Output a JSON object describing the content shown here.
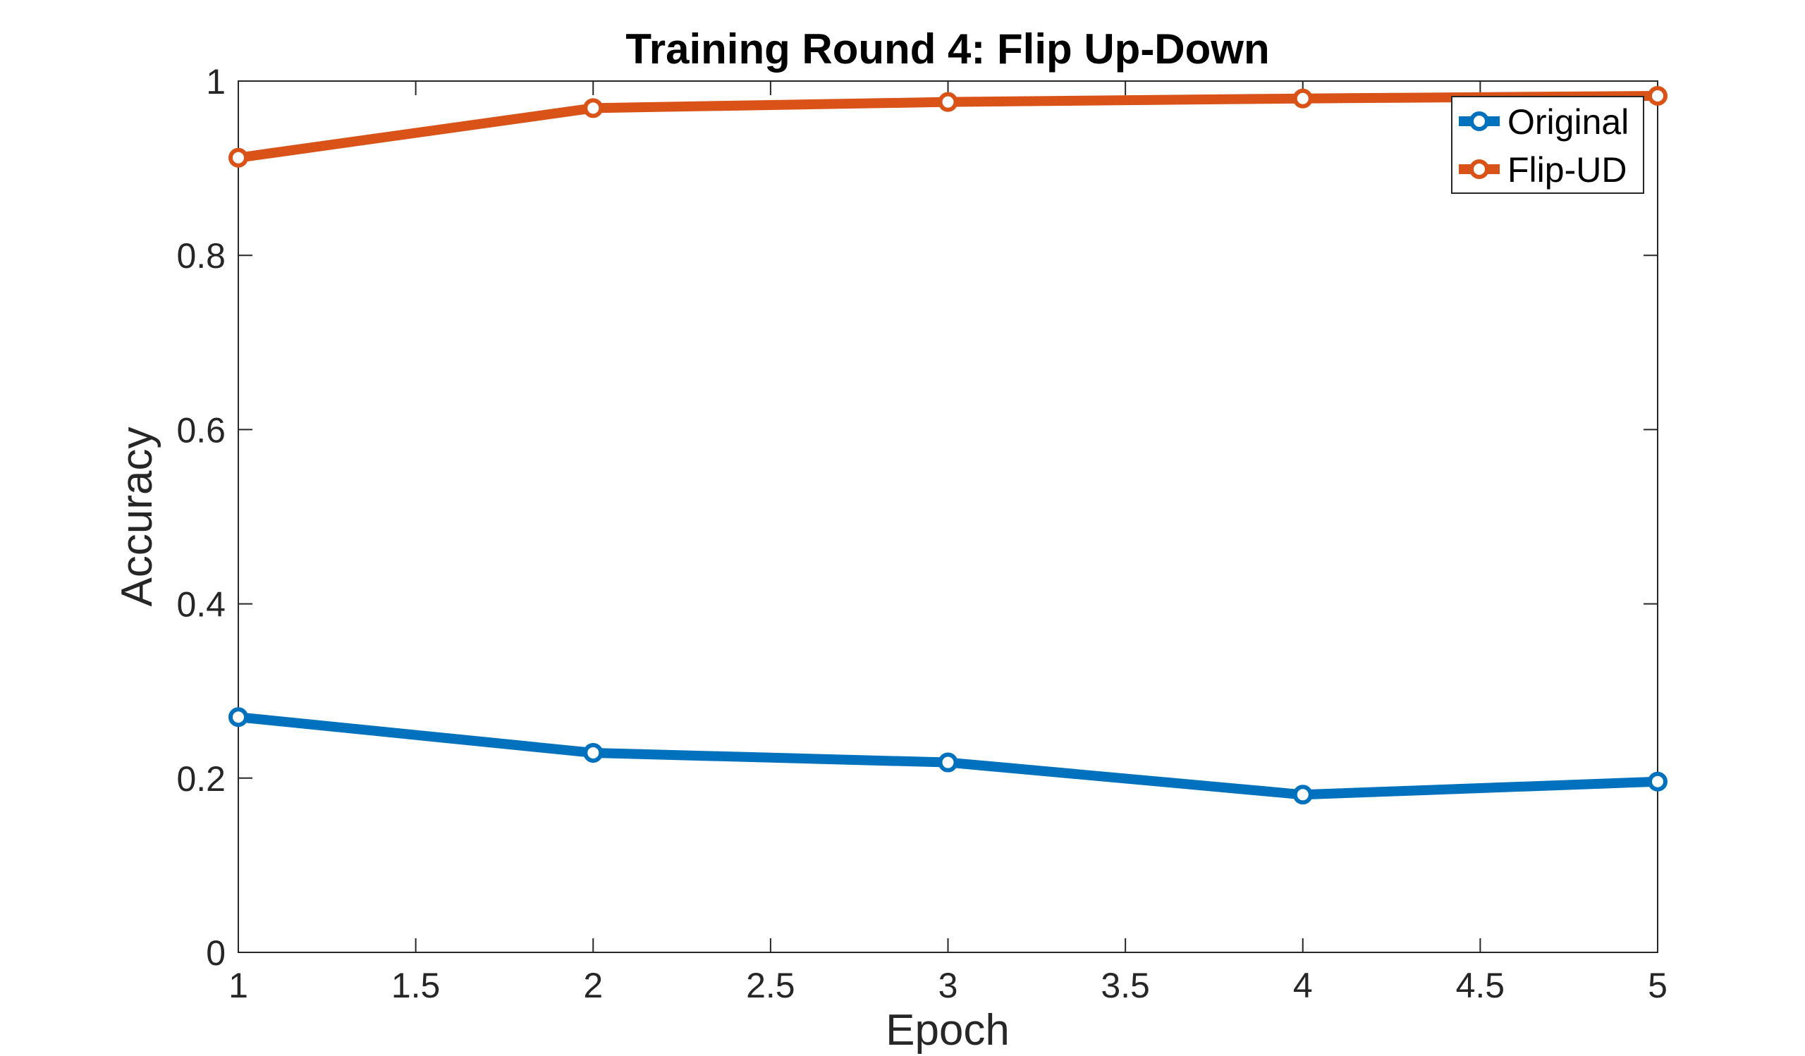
{
  "chart_data": {
    "type": "line",
    "title": "Training Round 4: Flip Up-Down",
    "xlabel": "Epoch",
    "ylabel": "Accuracy",
    "xlim": [
      1,
      5
    ],
    "ylim": [
      0,
      1
    ],
    "xticks": [
      "1",
      "1.5",
      "2",
      "2.5",
      "3",
      "3.5",
      "4",
      "4.5",
      "5"
    ],
    "yticks": [
      "0",
      "0.2",
      "0.4",
      "0.6",
      "0.8",
      "1"
    ],
    "x": [
      1,
      2,
      3,
      4,
      5
    ],
    "grid": false,
    "legend_position": "top-right",
    "series": [
      {
        "name": "Original",
        "color": "#0072BD",
        "marker": "circle",
        "values": [
          0.27,
          0.229,
          0.218,
          0.181,
          0.196
        ]
      },
      {
        "name": "Flip-UD",
        "color": "#D95319",
        "marker": "circle",
        "values": [
          0.912,
          0.969,
          0.976,
          0.98,
          0.983
        ]
      }
    ]
  }
}
